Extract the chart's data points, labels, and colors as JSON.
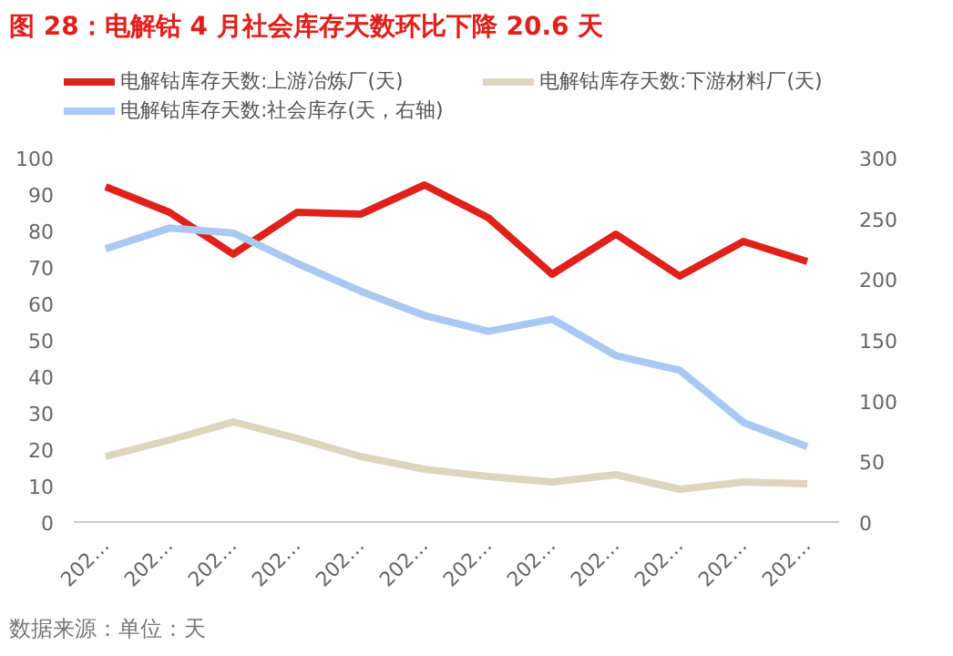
{
  "chart_data": {
    "type": "line",
    "title": "图 28：电解钴 4 月社会库存天数环比下降 20.6 天",
    "categories": [
      "202…",
      "202…",
      "202…",
      "202…",
      "202…",
      "202…",
      "202…",
      "202…",
      "202…",
      "202…",
      "202…",
      "202…"
    ],
    "series": [
      {
        "name": "电解钴库存天数:上游冶炼厂(天)",
        "color": "#e0201b",
        "values": [
          92,
          85,
          73.5,
          85,
          84.5,
          92.5,
          83.5,
          68,
          79,
          67.5,
          77,
          71.5
        ]
      },
      {
        "name": "电解钴库存天数:下游材料厂(天)",
        "color": "#ddd5bd",
        "values": [
          18,
          22.5,
          27.5,
          23,
          18,
          14.5,
          12.5,
          11,
          13,
          9,
          11,
          10.5
        ]
      },
      {
        "name": "电解钴库存天数:社会库存(天，右轴)",
        "color": "#a9c8f2",
        "axis": "y2",
        "values": [
          225,
          242,
          238,
          213,
          190,
          170,
          157,
          167,
          137,
          125,
          82,
          62
        ]
      }
    ],
    "ylim": [
      0,
      100
    ],
    "yticks": [
      0,
      10,
      20,
      30,
      40,
      50,
      60,
      70,
      80,
      90,
      100
    ],
    "y2lim": [
      0,
      300
    ],
    "y2ticks": [
      0,
      50,
      100,
      150,
      200,
      250,
      300
    ],
    "grid": false,
    "legend": "top",
    "marker": "none",
    "line_style": "solid",
    "annotations": [
      "数据来源：单位：天"
    ]
  }
}
